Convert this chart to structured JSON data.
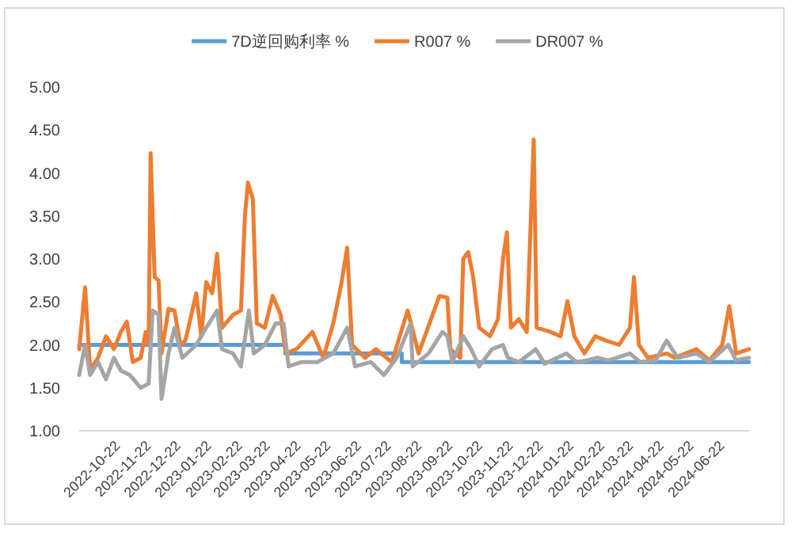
{
  "chart_data": {
    "type": "line",
    "legend": "top",
    "xlim": [
      "2022-09-10",
      "2024-07-16"
    ],
    "ylim": [
      1,
      5
    ],
    "yticks": [
      {
        "value": 1,
        "label": "1.00"
      },
      {
        "value": 1.5,
        "label": "1.50"
      },
      {
        "value": 2,
        "label": "2.00"
      },
      {
        "value": 2.5,
        "label": "2.50"
      },
      {
        "value": 3,
        "label": "3.00"
      },
      {
        "value": 3.5,
        "label": "3.50"
      },
      {
        "value": 4,
        "label": "4.00"
      },
      {
        "value": 4.5,
        "label": "4.50"
      },
      {
        "value": 5,
        "label": "5.00"
      }
    ],
    "xticks": [
      {
        "value": "2022-10-22",
        "label": "2022-10-22"
      },
      {
        "value": "2022-11-22",
        "label": "2022-11-22"
      },
      {
        "value": "2022-12-22",
        "label": "2022-12-22"
      },
      {
        "value": "2023-01-22",
        "label": "2023-01-22"
      },
      {
        "value": "2023-02-22",
        "label": "2023-02-22"
      },
      {
        "value": "2023-03-22",
        "label": "2023-03-22"
      },
      {
        "value": "2023-04-22",
        "label": "2023-04-22"
      },
      {
        "value": "2023-05-22",
        "label": "2023-05-22"
      },
      {
        "value": "2023-06-22",
        "label": "2023-06-22"
      },
      {
        "value": "2023-07-22",
        "label": "2023-07-22"
      },
      {
        "value": "2023-08-22",
        "label": "2023-08-22"
      },
      {
        "value": "2023-09-22",
        "label": "2023-09-22"
      },
      {
        "value": "2023-10-22",
        "label": "2023-10-22"
      },
      {
        "value": "2023-11-22",
        "label": "2023-11-22"
      },
      {
        "value": "2023-12-22",
        "label": "2023-12-22"
      },
      {
        "value": "2024-01-22",
        "label": "2024-01-22"
      },
      {
        "value": "2024-02-22",
        "label": "2024-02-22"
      },
      {
        "value": "2024-03-22",
        "label": "2024-03-22"
      },
      {
        "value": "2024-04-22",
        "label": "2024-04-22"
      },
      {
        "value": "2024-05-22",
        "label": "2024-05-22"
      },
      {
        "value": "2024-06-22",
        "label": "2024-06-22"
      }
    ],
    "series": [
      {
        "name": "7D逆回购利率 %",
        "type": "step",
        "color": "#5b9bd5",
        "x": [
          "2022-09-10",
          "2023-04-06",
          "2023-08-01",
          "2024-07-16"
        ],
        "values": [
          2.0,
          1.9,
          1.8,
          1.8
        ]
      },
      {
        "name": "R007 %",
        "color": "#ed7d31",
        "x": [
          "2022-09-10",
          "2022-09-16",
          "2022-09-21",
          "2022-09-29",
          "2022-10-07",
          "2022-10-15",
          "2022-10-22",
          "2022-10-28",
          "2022-11-03",
          "2022-11-11",
          "2022-11-16",
          "2022-11-19",
          "2022-11-21",
          "2022-11-25",
          "2022-11-29",
          "2022-12-02",
          "2022-12-09",
          "2022-12-15",
          "2022-12-21",
          "2022-12-26",
          "2023-01-06",
          "2023-01-11",
          "2023-01-16",
          "2023-01-22",
          "2023-01-27",
          "2023-02-01",
          "2023-02-12",
          "2023-02-20",
          "2023-02-24",
          "2023-02-27",
          "2023-03-04",
          "2023-03-08",
          "2023-03-16",
          "2023-03-24",
          "2023-04-01",
          "2023-04-06",
          "2023-04-17",
          "2023-05-03",
          "2023-05-14",
          "2023-05-24",
          "2023-06-01",
          "2023-06-07",
          "2023-06-12",
          "2023-06-25",
          "2023-07-06",
          "2023-07-22",
          "2023-08-07",
          "2023-08-18",
          "2023-09-08",
          "2023-09-16",
          "2023-09-19",
          "2023-09-29",
          "2023-10-02",
          "2023-10-07",
          "2023-10-12",
          "2023-10-18",
          "2023-10-29",
          "2023-11-06",
          "2023-11-11",
          "2023-11-15",
          "2023-11-19",
          "2023-11-27",
          "2023-12-05",
          "2023-12-12",
          "2023-12-15",
          "2023-12-29",
          "2024-01-08",
          "2024-01-15",
          "2024-01-22",
          "2024-02-01",
          "2024-02-12",
          "2024-02-23",
          "2024-03-07",
          "2024-03-18",
          "2024-03-22",
          "2024-03-27",
          "2024-04-05",
          "2024-04-24",
          "2024-05-02",
          "2024-05-24",
          "2024-06-06",
          "2024-06-19",
          "2024-06-26",
          "2024-07-03",
          "2024-07-16"
        ],
        "values": [
          1.95,
          2.67,
          1.71,
          1.85,
          2.1,
          1.95,
          2.15,
          2.27,
          1.8,
          1.85,
          2.15,
          2.0,
          4.23,
          2.79,
          2.75,
          1.9,
          2.42,
          2.4,
          2.0,
          2.05,
          2.6,
          2.1,
          2.73,
          2.6,
          3.06,
          2.2,
          2.35,
          2.4,
          3.5,
          3.89,
          3.7,
          2.25,
          2.2,
          2.57,
          2.35,
          1.9,
          1.95,
          2.15,
          1.85,
          2.25,
          2.7,
          3.13,
          2.0,
          1.85,
          1.95,
          1.8,
          2.4,
          1.9,
          2.57,
          2.55,
          1.95,
          1.85,
          3.0,
          3.08,
          2.79,
          2.2,
          2.1,
          2.3,
          3.0,
          3.31,
          2.2,
          2.3,
          2.15,
          4.39,
          2.2,
          2.15,
          2.1,
          2.51,
          2.1,
          1.9,
          2.1,
          2.05,
          2.0,
          2.2,
          2.79,
          2.0,
          1.85,
          1.9,
          1.85,
          1.95,
          1.82,
          2.0,
          2.45,
          1.9,
          1.95
        ]
      },
      {
        "name": "DR007 %",
        "color": "#a5a5a5",
        "x": [
          "2022-09-10",
          "2022-09-16",
          "2022-09-21",
          "2022-09-29",
          "2022-10-07",
          "2022-10-15",
          "2022-10-22",
          "2022-10-31",
          "2022-11-11",
          "2022-11-19",
          "2022-11-23",
          "2022-11-29",
          "2022-12-02",
          "2022-12-09",
          "2022-12-15",
          "2022-12-23",
          "2023-01-06",
          "2023-01-16",
          "2023-01-27",
          "2023-02-01",
          "2023-02-12",
          "2023-02-20",
          "2023-02-28",
          "2023-03-05",
          "2023-03-16",
          "2023-03-27",
          "2023-04-04",
          "2023-04-09",
          "2023-04-22",
          "2023-05-08",
          "2023-05-24",
          "2023-06-07",
          "2023-06-15",
          "2023-07-01",
          "2023-07-14",
          "2023-07-27",
          "2023-08-10",
          "2023-08-12",
          "2023-08-28",
          "2023-09-11",
          "2023-09-16",
          "2023-09-21",
          "2023-10-02",
          "2023-10-10",
          "2023-10-18",
          "2023-10-31",
          "2023-11-11",
          "2023-11-16",
          "2023-11-27",
          "2023-12-14",
          "2023-12-23",
          "2024-01-14",
          "2024-01-24",
          "2024-02-04",
          "2024-02-14",
          "2024-02-25",
          "2024-03-18",
          "2024-03-28",
          "2024-04-13",
          "2024-04-24",
          "2024-05-05",
          "2024-05-24",
          "2024-06-06",
          "2024-06-25",
          "2024-07-03",
          "2024-07-16"
        ],
        "values": [
          1.65,
          2.0,
          1.65,
          1.8,
          1.6,
          1.85,
          1.7,
          1.65,
          1.5,
          1.55,
          2.4,
          2.35,
          1.37,
          1.9,
          2.2,
          1.85,
          2.0,
          2.2,
          2.4,
          1.95,
          1.9,
          1.75,
          2.4,
          1.9,
          2.0,
          2.25,
          2.25,
          1.75,
          1.8,
          1.8,
          1.9,
          2.2,
          1.75,
          1.8,
          1.65,
          1.85,
          2.25,
          1.75,
          1.9,
          2.15,
          2.1,
          1.8,
          2.1,
          1.95,
          1.75,
          1.95,
          2.0,
          1.85,
          1.8,
          1.95,
          1.78,
          1.9,
          1.8,
          1.82,
          1.85,
          1.82,
          1.9,
          1.8,
          1.82,
          2.05,
          1.85,
          1.9,
          1.8,
          2.0,
          1.82,
          1.85
        ]
      }
    ]
  }
}
